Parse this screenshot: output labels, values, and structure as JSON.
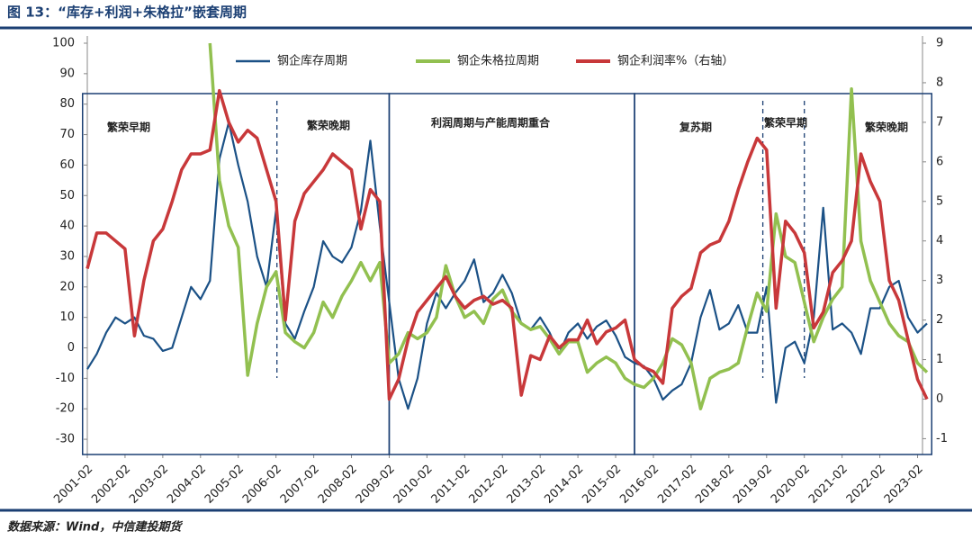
{
  "chart_data": {
    "type": "line",
    "title": "图 13：“库存+利润+朱格拉”嵌套周期",
    "source": "数据来源：Wind，中信建投期货",
    "categories": [
      "2001-02",
      null,
      null,
      null,
      "2002-02",
      null,
      null,
      null,
      "2003-02",
      null,
      null,
      null,
      "2004-02",
      null,
      null,
      null,
      "2005-02",
      null,
      null,
      null,
      "2006-02",
      null,
      null,
      null,
      "2007-02",
      null,
      null,
      null,
      "2008-02",
      null,
      null,
      null,
      "2009-02",
      null,
      null,
      null,
      "2010-02",
      null,
      null,
      null,
      "2011-02",
      null,
      null,
      null,
      "2012-02",
      null,
      null,
      null,
      "2013-02",
      null,
      null,
      null,
      "2014-02",
      null,
      null,
      null,
      "2015-02",
      null,
      null,
      null,
      "2016-02",
      null,
      null,
      null,
      "2017-02",
      null,
      null,
      null,
      "2018-02",
      null,
      null,
      null,
      "2019-02",
      null,
      null,
      null,
      "2020-02",
      null,
      null,
      null,
      "2021-02",
      null,
      null,
      null,
      "2022-02",
      null,
      null,
      null,
      "2023-02",
      null
    ],
    "series": [
      {
        "name": "钢企库存周期",
        "color": "#1b5186",
        "values": [
          -7,
          -2,
          5,
          10,
          8,
          10,
          4,
          3,
          -1,
          0,
          10,
          20,
          16,
          22,
          62,
          74,
          60,
          48,
          30,
          20,
          45,
          8,
          3,
          12,
          20,
          35,
          30,
          28,
          33,
          45,
          68,
          40,
          15,
          -10,
          -20,
          -10,
          8,
          18,
          13,
          18,
          22,
          29,
          15,
          18,
          24,
          18,
          8,
          6,
          10,
          5,
          -2,
          5,
          8,
          3,
          7,
          9,
          4,
          -3,
          -5,
          -6,
          -10,
          -17,
          -14,
          -12,
          -5,
          10,
          19,
          6,
          8,
          14,
          5,
          5,
          20,
          -18,
          0,
          2,
          -5,
          10,
          46,
          6,
          8,
          5,
          -2,
          13,
          13,
          20,
          22,
          10,
          5,
          8
        ]
      },
      {
        "name": "钢企朱格拉周期",
        "color": "#92c050",
        "values": [
          null,
          null,
          null,
          null,
          null,
          null,
          null,
          null,
          null,
          null,
          null,
          null,
          null,
          100,
          55,
          40,
          33,
          -9,
          8,
          20,
          25,
          5,
          2,
          0,
          5,
          15,
          10,
          17,
          22,
          28,
          22,
          28,
          -5,
          -2,
          5,
          3,
          5,
          10,
          27,
          17,
          10,
          12,
          8,
          16,
          19,
          12,
          8,
          6,
          7,
          3,
          -2,
          2,
          2,
          -8,
          -5,
          -3,
          -5,
          -10,
          -12,
          -13,
          -10,
          -5,
          3,
          1,
          -5,
          -20,
          -10,
          -8,
          -7,
          -5,
          7,
          18,
          12,
          44,
          30,
          28,
          15,
          2,
          10,
          16,
          20,
          85,
          35,
          22,
          15,
          8,
          4,
          2,
          -5,
          -8
        ]
      },
      {
        "name": "钢企利润率%（右轴）",
        "color": "#c8383a",
        "axis": "y2",
        "values": [
          3.3,
          4.2,
          4.2,
          4.0,
          3.8,
          1.6,
          3.0,
          4.0,
          4.3,
          5.0,
          5.8,
          6.2,
          6.2,
          6.3,
          7.8,
          7.0,
          6.5,
          6.8,
          6.6,
          5.8,
          5.0,
          2.0,
          4.5,
          5.2,
          5.5,
          5.8,
          6.2,
          6.0,
          5.8,
          4.3,
          5.3,
          5.0,
          0.0,
          0.5,
          1.5,
          2.2,
          2.5,
          2.8,
          3.1,
          2.6,
          2.3,
          2.5,
          2.6,
          2.4,
          2.5,
          2.3,
          0.1,
          1.1,
          1.0,
          1.6,
          1.3,
          1.5,
          1.5,
          2.0,
          1.4,
          1.7,
          1.8,
          2.0,
          1.0,
          0.8,
          0.7,
          0.4,
          2.3,
          2.6,
          2.8,
          3.7,
          3.9,
          4.0,
          4.5,
          5.3,
          6.0,
          6.6,
          6.3,
          2.3,
          4.5,
          4.2,
          3.7,
          1.8,
          2.2,
          3.2,
          3.5,
          4.0,
          6.2,
          5.5,
          5.0,
          3.0,
          2.5,
          1.5,
          0.5,
          0.0
        ]
      }
    ],
    "ylim": [
      -35,
      100
    ],
    "yticks": [
      -30,
      -20,
      -10,
      0,
      10,
      20,
      30,
      40,
      50,
      60,
      70,
      80,
      90,
      100
    ],
    "y2lim": [
      -1.4,
      9
    ],
    "y2ticks": [
      -1,
      0,
      1,
      2,
      3,
      4,
      5,
      6,
      7,
      8,
      9
    ],
    "annotations": [
      "繁荣早期",
      "繁荣晚期",
      "利润周期与产能周期重合",
      "复苏期",
      "繁荣早期",
      "繁荣晚期"
    ],
    "legend": "top"
  }
}
